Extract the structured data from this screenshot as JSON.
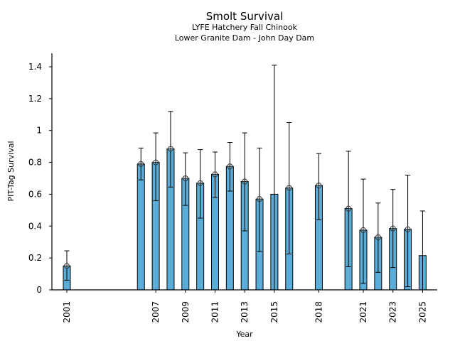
{
  "chart_data": {
    "type": "bar",
    "title": "Smolt Survival",
    "subtitle_lines": [
      "LYFE Hatchery Fall Chinook",
      "Lower Granite Dam - John Day Dam"
    ],
    "xlabel": "Year",
    "ylabel": "PIT-Tag Survival",
    "ylim": [
      0,
      1.485
    ],
    "xlim": [
      2000,
      2026
    ],
    "yticks": [
      0,
      0.2,
      0.4,
      0.6,
      0.8,
      1,
      1.2,
      1.4
    ],
    "ytick_labels": [
      "0",
      "0.2",
      "0.4",
      "0.6",
      "0.8",
      "1",
      "1.2",
      "1.4"
    ],
    "xticks": [
      2001,
      2007,
      2009,
      2011,
      2013,
      2015,
      2018,
      2021,
      2023,
      2025
    ],
    "xtick_labels": [
      "2001",
      "2007",
      "2009",
      "2011",
      "2013",
      "2015",
      "2018",
      "2021",
      "2023",
      "2025"
    ],
    "grid": false,
    "bar_color": "#5bacd6",
    "bars": [
      {
        "year": 2001,
        "value": 0.15,
        "lower": 0.06,
        "upper": 0.245,
        "marker": true
      },
      {
        "year": 2006,
        "value": 0.79,
        "lower": 0.69,
        "upper": 0.89,
        "marker": true
      },
      {
        "year": 2007,
        "value": 0.8,
        "lower": 0.56,
        "upper": 0.985,
        "marker": true
      },
      {
        "year": 2008,
        "value": 0.885,
        "lower": 0.645,
        "upper": 1.12,
        "marker": true
      },
      {
        "year": 2009,
        "value": 0.7,
        "lower": 0.53,
        "upper": 0.86,
        "marker": true
      },
      {
        "year": 2010,
        "value": 0.67,
        "lower": 0.45,
        "upper": 0.88,
        "marker": true
      },
      {
        "year": 2011,
        "value": 0.725,
        "lower": 0.58,
        "upper": 0.865,
        "marker": true
      },
      {
        "year": 2012,
        "value": 0.775,
        "lower": 0.62,
        "upper": 0.925,
        "marker": true
      },
      {
        "year": 2013,
        "value": 0.68,
        "lower": 0.37,
        "upper": 0.985,
        "marker": true
      },
      {
        "year": 2014,
        "value": 0.57,
        "lower": 0.24,
        "upper": 0.89,
        "marker": true
      },
      {
        "year": 2015,
        "value": 0.6,
        "lower": 0.0,
        "upper": 1.41,
        "marker": false
      },
      {
        "year": 2016,
        "value": 0.64,
        "lower": 0.225,
        "upper": 1.05,
        "marker": true
      },
      {
        "year": 2018,
        "value": 0.655,
        "lower": 0.44,
        "upper": 0.855,
        "marker": true
      },
      {
        "year": 2020,
        "value": 0.51,
        "lower": 0.145,
        "upper": 0.87,
        "marker": true
      },
      {
        "year": 2021,
        "value": 0.375,
        "lower": 0.04,
        "upper": 0.695,
        "marker": true
      },
      {
        "year": 2022,
        "value": 0.33,
        "lower": 0.11,
        "upper": 0.545,
        "marker": true
      },
      {
        "year": 2023,
        "value": 0.385,
        "lower": 0.14,
        "upper": 0.63,
        "marker": true
      },
      {
        "year": 2024,
        "value": 0.38,
        "lower": 0.02,
        "upper": 0.72,
        "marker": true
      },
      {
        "year": 2025,
        "value": 0.215,
        "lower": 0.0,
        "upper": 0.495,
        "marker": false
      }
    ]
  }
}
